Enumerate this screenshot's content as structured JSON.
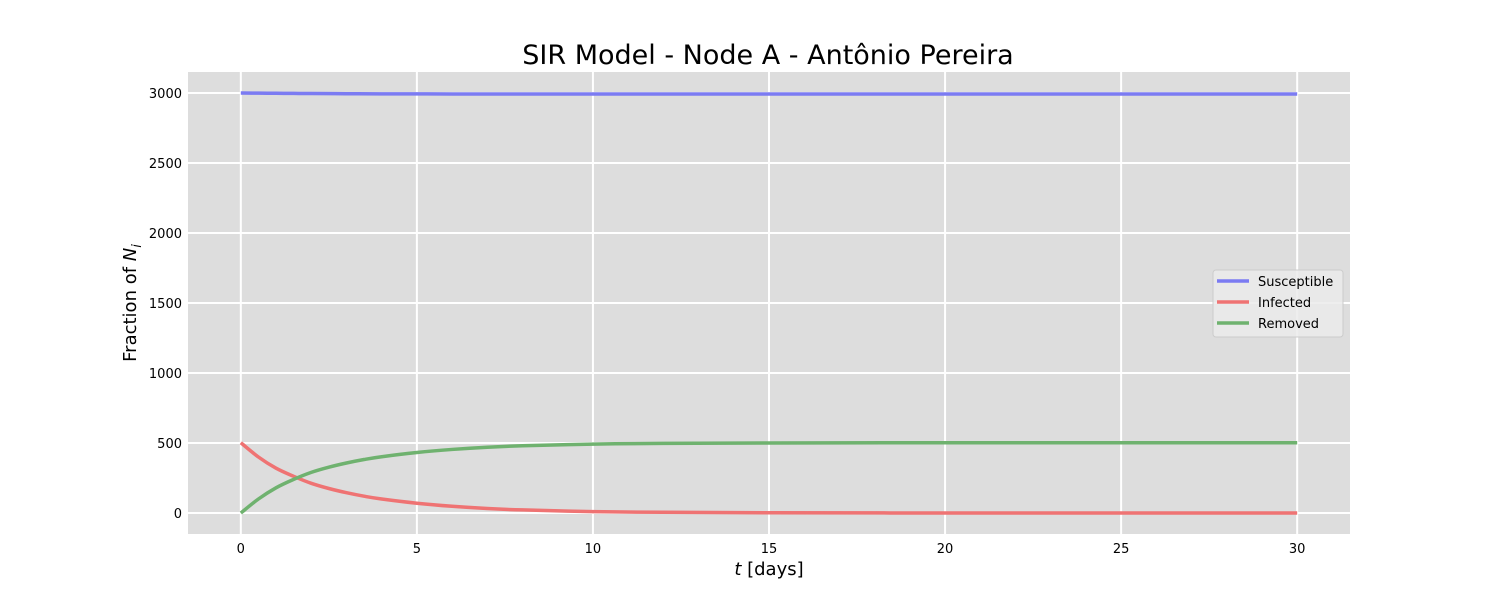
{
  "chart_data": {
    "type": "line",
    "title": "SIR Model - Node A - Antônio Pereira",
    "xlabel_var": "t",
    "xlabel_unit": " [days]",
    "ylabel_text": "Fraction of ",
    "ylabel_var": "N",
    "ylabel_sub": "i",
    "xlim": [
      -1.5,
      31.5
    ],
    "ylim": [
      -150,
      3150
    ],
    "xticks": [
      0,
      5,
      10,
      15,
      20,
      25,
      30
    ],
    "yticks": [
      0,
      500,
      1000,
      1500,
      2000,
      2500,
      3000
    ],
    "grid": true,
    "legend_position": "center-right",
    "background_color": "#dddddd",
    "series": [
      {
        "name": "Susceptible",
        "color": "#7b7bf2",
        "x": [
          0,
          0.5,
          1,
          1.5,
          2,
          3,
          4,
          5,
          6,
          8,
          10,
          15,
          20,
          25,
          30
        ],
        "y": [
          3000,
          2999,
          2998,
          2997,
          2996,
          2995,
          2994,
          2994,
          2993,
          2993,
          2993,
          2993,
          2993,
          2993,
          2993
        ]
      },
      {
        "name": "Infected",
        "color": "#ef7373",
        "x": [
          0,
          0.5,
          1,
          1.5,
          2,
          2.5,
          3,
          3.5,
          4,
          5,
          6,
          7,
          8,
          10,
          12,
          15,
          20,
          25,
          30
        ],
        "y": [
          502,
          400,
          320,
          262,
          212,
          175,
          145,
          120,
          100,
          70,
          48,
          32,
          22,
          10,
          5,
          2,
          0,
          0,
          0
        ]
      },
      {
        "name": "Removed",
        "color": "#6fb26f",
        "x": [
          0,
          0.5,
          1,
          1.5,
          2,
          2.5,
          3,
          3.5,
          4,
          5,
          6,
          7,
          8,
          10,
          12,
          15,
          20,
          25,
          30
        ],
        "y": [
          0,
          100,
          180,
          240,
          290,
          327,
          357,
          382,
          402,
          432,
          454,
          470,
          480,
          492,
          497,
          500,
          502,
          502,
          502
        ]
      }
    ]
  }
}
